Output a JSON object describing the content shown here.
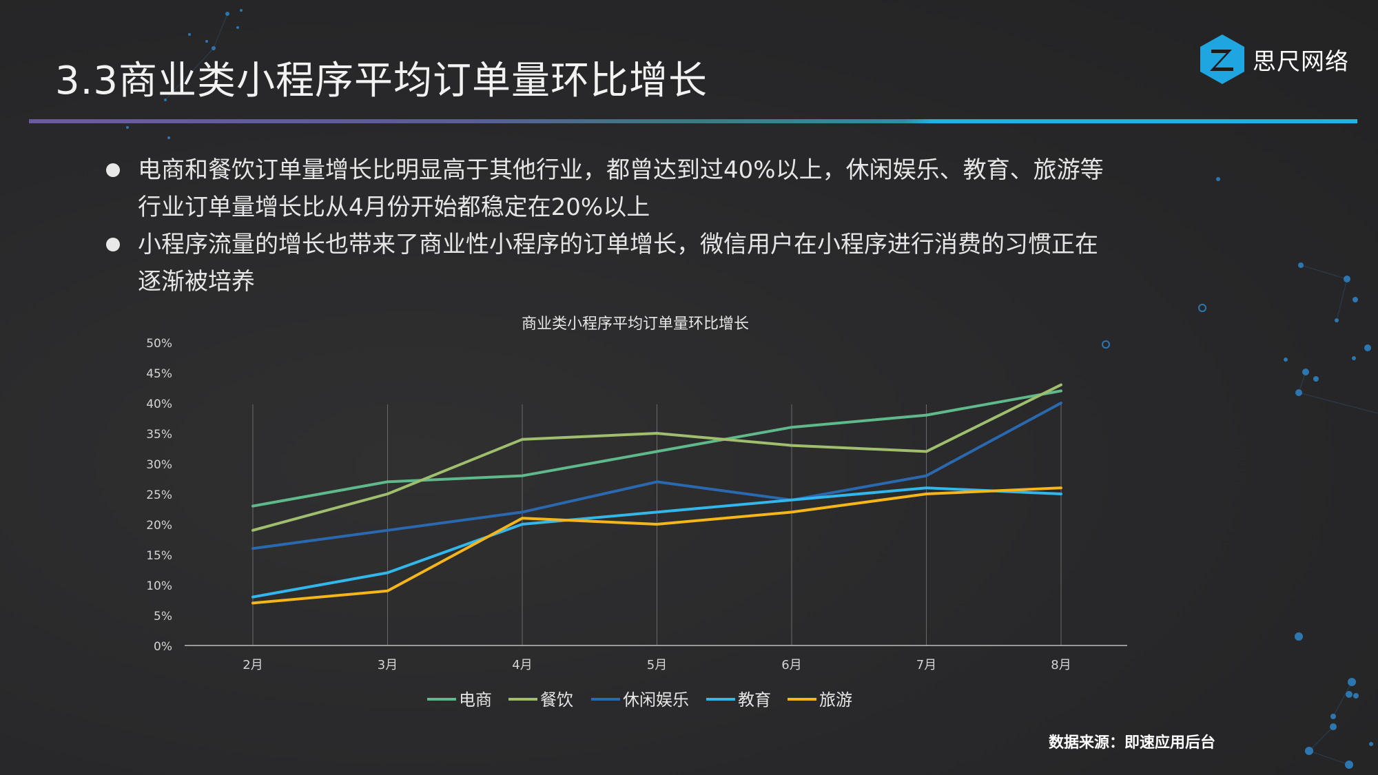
{
  "slide": {
    "title": "3.3商业类小程序平均订单量环比增长",
    "logo_text": "思尺网络",
    "source": "数据来源：即速应用后台",
    "bullets": [
      "电商和餐饮订单量增长比明显高于其他行业，都曾达到过40%以上，休闲娱乐、教育、旅游等行业订单量增长比从4月份开始都稳定在20%以上",
      "小程序流量的增长也带来了商业性小程序的订单增长，微信用户在小程序进行消费的习惯正在逐渐被培养"
    ]
  },
  "colors": {
    "background": "#2a2a2b",
    "accent_purple": "#6c5aa0",
    "accent_cyan": "#1fb3e3"
  },
  "chart_data": {
    "type": "line",
    "title": "商业类小程序平均订单量环比增长",
    "xlabel": "",
    "ylabel": "",
    "categories": [
      "2月",
      "3月",
      "4月",
      "5月",
      "6月",
      "7月",
      "8月"
    ],
    "ylim": [
      0,
      50
    ],
    "ytick_step": 5,
    "ytick_labels": [
      "0%",
      "5%",
      "10%",
      "15%",
      "20%",
      "25%",
      "30%",
      "35%",
      "40%",
      "45%",
      "50%"
    ],
    "grid": "vertical",
    "legend": "bottom",
    "series": [
      {
        "name": "电商",
        "color": "#5fb98a",
        "values": [
          23,
          27,
          28,
          32,
          36,
          38,
          42
        ]
      },
      {
        "name": "餐饮",
        "color": "#9fbe6e",
        "values": [
          19,
          25,
          34,
          35,
          33,
          32,
          43
        ]
      },
      {
        "name": "休闲娱乐",
        "color": "#2a68b0",
        "values": [
          16,
          19,
          22,
          27,
          24,
          28,
          40
        ]
      },
      {
        "name": "教育",
        "color": "#33b6ea",
        "values": [
          8,
          12,
          20,
          22,
          24,
          26,
          25
        ]
      },
      {
        "name": "旅游",
        "color": "#f4b61a",
        "values": [
          7,
          9,
          21,
          20,
          22,
          25,
          26
        ]
      }
    ]
  }
}
